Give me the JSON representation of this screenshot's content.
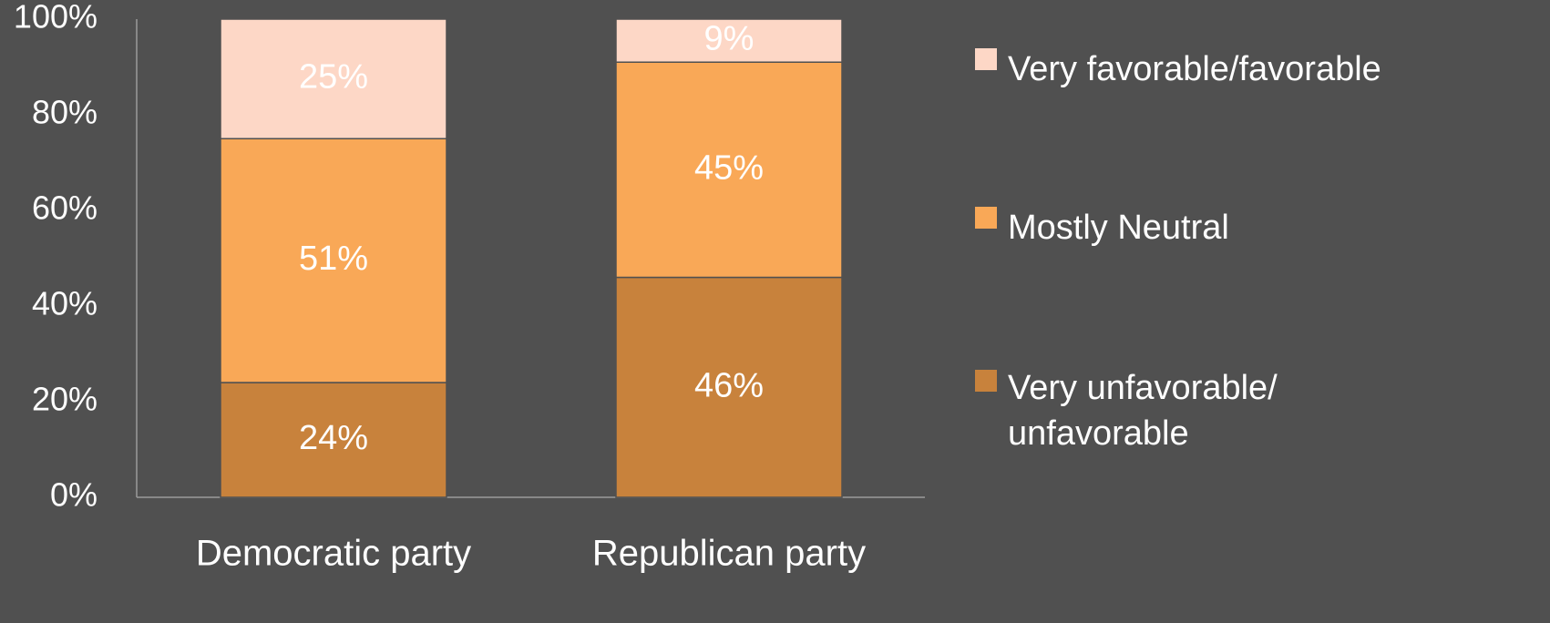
{
  "chart_data": {
    "type": "bar",
    "stacked": true,
    "categories": [
      "Democratic party",
      "Republican party"
    ],
    "series": [
      {
        "name": "Very unfavorable/ unfavorable",
        "legend_lines": [
          "Very unfavorable/",
          "unfavorable"
        ],
        "values": [
          24,
          46
        ],
        "labels": [
          "24%",
          "46%"
        ],
        "color": "#C8823C"
      },
      {
        "name": "Mostly Neutral",
        "legend_lines": [
          "Mostly Neutral"
        ],
        "values": [
          51,
          45
        ],
        "labels": [
          "51%",
          "45%"
        ],
        "color": "#F9A857"
      },
      {
        "name": "Very favorable/favorable",
        "legend_lines": [
          "Very favorable/favorable"
        ],
        "values": [
          25,
          9
        ],
        "labels": [
          "25%",
          "9%"
        ],
        "color": "#FDD7C6"
      }
    ],
    "y_ticks": [
      "0%",
      "20%",
      "40%",
      "60%",
      "80%",
      "100%"
    ],
    "y_tick_values": [
      0,
      20,
      40,
      60,
      80,
      100
    ],
    "ylim": [
      0,
      100
    ],
    "title": "",
    "xlabel": "",
    "ylabel": "",
    "grid": false,
    "legend_position": "right"
  },
  "colors": {
    "background": "#505050",
    "axis": "#9a9a9a",
    "text": "#ffffff"
  }
}
